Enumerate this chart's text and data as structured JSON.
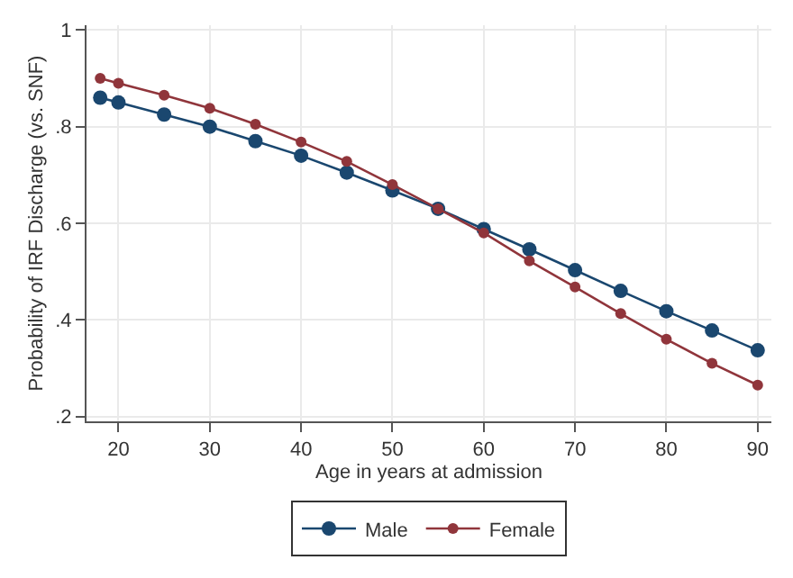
{
  "chart_data": {
    "type": "line",
    "xlabel": "Age in years at admission",
    "ylabel": "Probability of IRF Discharge (vs. SNF)",
    "x": [
      18,
      20,
      25,
      30,
      35,
      40,
      45,
      50,
      55,
      60,
      65,
      70,
      75,
      80,
      85,
      90
    ],
    "series": [
      {
        "name": "Male",
        "color": "#1a476f",
        "values": [
          0.86,
          0.85,
          0.825,
          0.8,
          0.77,
          0.74,
          0.705,
          0.668,
          0.63,
          0.588,
          0.546,
          0.503,
          0.46,
          0.418,
          0.378,
          0.337
        ]
      },
      {
        "name": "Female",
        "color": "#90353b",
        "values": [
          0.9,
          0.89,
          0.865,
          0.838,
          0.805,
          0.768,
          0.728,
          0.68,
          0.63,
          0.58,
          0.522,
          0.468,
          0.413,
          0.36,
          0.31,
          0.265
        ]
      }
    ],
    "xlim": [
      16.5,
      91.5
    ],
    "xticks": [
      20,
      30,
      40,
      50,
      60,
      70,
      80,
      90
    ],
    "ylim": [
      0.19,
      1.01
    ],
    "yticks": [
      {
        "value": 0.2,
        "label": ".2"
      },
      {
        "value": 0.4,
        "label": ".4"
      },
      {
        "value": 0.6,
        "label": ".6"
      },
      {
        "value": 0.8,
        "label": ".8"
      },
      {
        "value": 1,
        "label": "1"
      }
    ],
    "grid": true,
    "legend": "bottom",
    "marker": "circle",
    "line_style": "solid"
  }
}
